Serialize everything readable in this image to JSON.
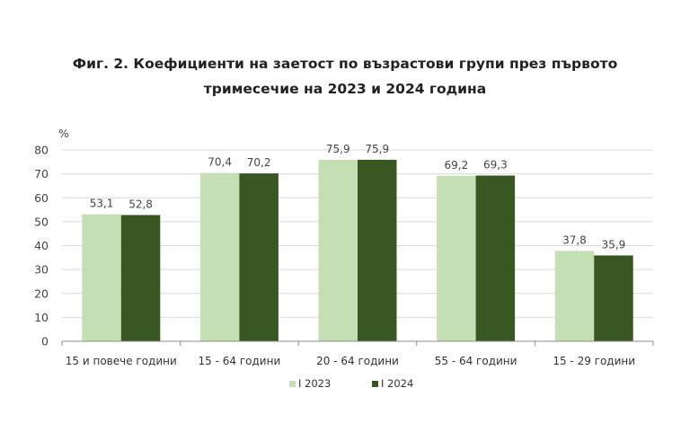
{
  "chart_data": {
    "type": "bar",
    "title_line1": "Фиг. 2. Коефициенти на заетост по възрастови групи през първото",
    "title_line2": "тримесечие на 2023 и 2024 година",
    "ylabel": "%",
    "ylim": [
      0,
      80
    ],
    "yticks": [
      0,
      10,
      20,
      30,
      40,
      50,
      60,
      70,
      80
    ],
    "grid": true,
    "legend_position": "bottom",
    "categories": [
      "15 и повече години",
      "15 - 64 години",
      "20 - 64 години",
      "55 - 64 години",
      "15 - 29 години"
    ],
    "series": [
      {
        "name": "I 2023",
        "color": "#c5dfb4",
        "values": [
          53.1,
          70.4,
          75.9,
          69.2,
          37.8
        ],
        "labels": [
          "53,1",
          "70,4",
          "75,9",
          "69,2",
          "37,8"
        ]
      },
      {
        "name": "I 2024",
        "color": "#385723",
        "values": [
          52.8,
          70.2,
          75.9,
          69.3,
          35.9
        ],
        "labels": [
          "52,8",
          "70,2",
          "75,9",
          "69,3",
          "35,9"
        ]
      }
    ]
  }
}
